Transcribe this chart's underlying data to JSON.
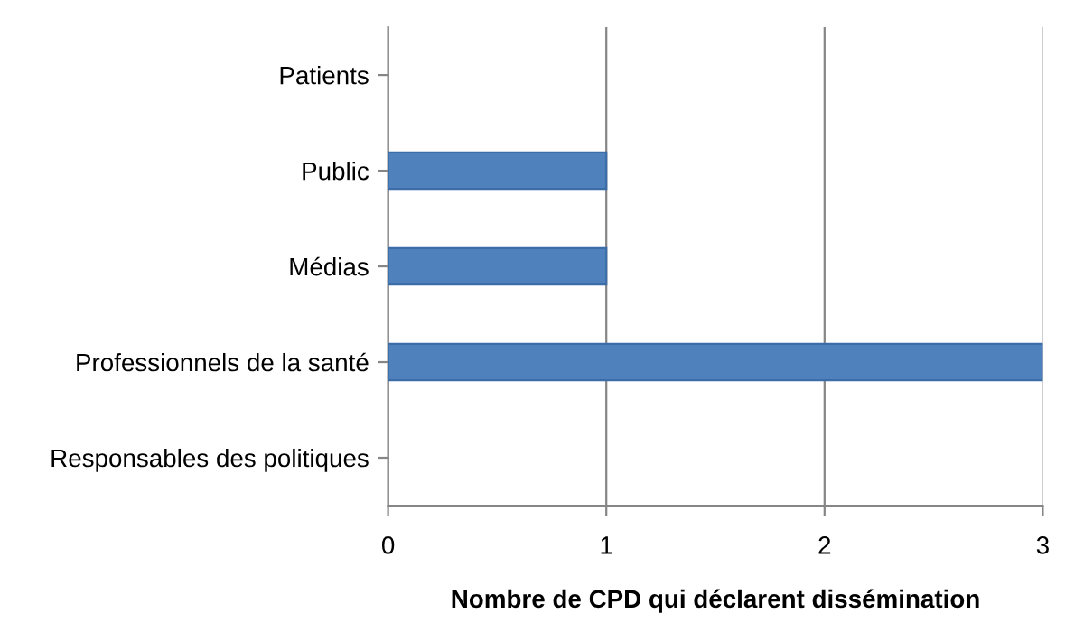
{
  "chart_data": {
    "type": "bar",
    "orientation": "horizontal",
    "categories": [
      "Patients",
      "Public",
      "Médias",
      "Professionnels de la santé",
      "Responsables des politiques"
    ],
    "values": [
      0,
      1,
      1,
      3,
      0
    ],
    "color": "#4f81bd",
    "xlim": [
      0,
      3
    ],
    "xticks": [
      0,
      1,
      2,
      3
    ],
    "grid": "x",
    "xlabel": "Nombre de CPD qui déclarent dissémination"
  }
}
